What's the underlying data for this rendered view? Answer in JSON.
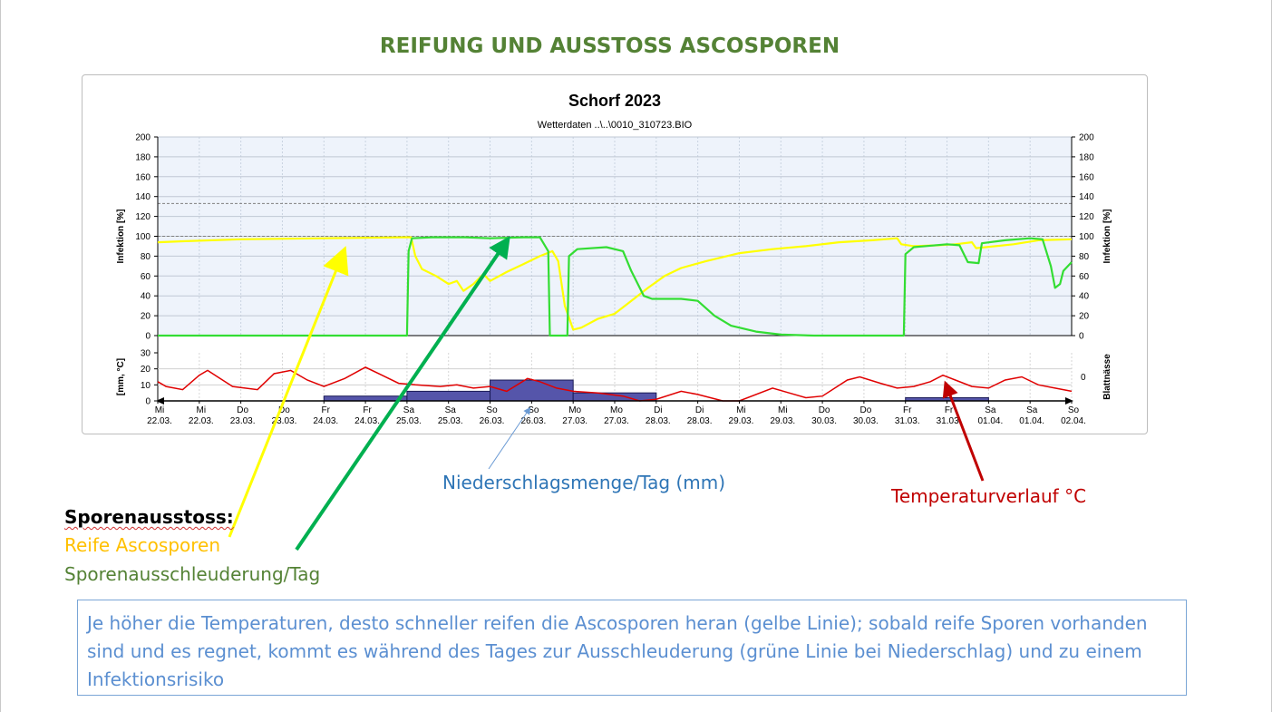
{
  "document": {
    "title": "REIFUNG UND AUSSTOSS ASCOSPOREN",
    "annotations": {
      "precipitation": "Niederschlagsmenge/Tag (mm)",
      "temperature": "Temperaturverlauf °C"
    },
    "legend": {
      "heading": "Sporenausstoss:",
      "yellow": "Reife Ascosporen",
      "green": "Sporenausschleuderung/Tag"
    },
    "note": "Je höher die Temperaturen, desto schneller reifen die Ascosporen heran (gelbe Linie); sobald reife Sporen vorhanden sind und es regnet, kommt es während des Tages zur Ausschleuderung (grüne Linie bei Niederschlag) und zu einem Infektionsrisiko",
    "colors": {
      "title": "#548235",
      "yellow": "#ffc000",
      "green": "#548235",
      "precip": "#2e75b6",
      "temp": "#c00000",
      "note": "#5b8fd1"
    }
  },
  "chart_data": {
    "type": "line",
    "title": "Schorf  2023",
    "subtitle": "Wetterdaten ..\\..\\0010_310723.BIO",
    "ylabel_left": "Infektion [%]",
    "ylabel_right": "Infektion [%]",
    "ylim": [
      0,
      200
    ],
    "yticks": [
      0,
      20,
      40,
      60,
      80,
      100,
      120,
      140,
      160,
      180,
      200
    ],
    "reference_line": 100,
    "xlim": [
      0,
      11
    ],
    "x_tick_weekdays": [
      "Mi",
      "Mi",
      "Do",
      "Do",
      "Fr",
      "Fr",
      "Sa",
      "Sa",
      "So",
      "So",
      "Mo",
      "Mo",
      "Di",
      "Di",
      "Mi",
      "Mi",
      "Do",
      "Do",
      "Fr",
      "Fr",
      "Sa",
      "Sa",
      "So"
    ],
    "x_tick_dates": [
      "22.03.",
      "22.03.",
      "23.03.",
      "23.03.",
      "24.03.",
      "24.03.",
      "25.03.",
      "25.03.",
      "26.03.",
      "26.03.",
      "27.03.",
      "27.03.",
      "28.03.",
      "28.03.",
      "29.03.",
      "29.03.",
      "30.03.",
      "30.03.",
      "31.03.",
      "31.03.",
      "01.04.",
      "01.04.",
      "02.04."
    ],
    "series": [
      {
        "name": "Reife Ascosporen",
        "color": "#ffff00",
        "points": [
          [
            0,
            94
          ],
          [
            0.3,
            95
          ],
          [
            1,
            97
          ],
          [
            2,
            98
          ],
          [
            3,
            99
          ],
          [
            3.05,
            99
          ],
          [
            3.1,
            80
          ],
          [
            3.18,
            67
          ],
          [
            3.35,
            60
          ],
          [
            3.5,
            52
          ],
          [
            3.6,
            55
          ],
          [
            3.68,
            45
          ],
          [
            3.8,
            52
          ],
          [
            3.92,
            62
          ],
          [
            4.0,
            55
          ],
          [
            4.2,
            64
          ],
          [
            4.4,
            72
          ],
          [
            4.6,
            80
          ],
          [
            4.75,
            85
          ],
          [
            4.82,
            75
          ],
          [
            4.9,
            30
          ],
          [
            5.0,
            6
          ],
          [
            5.1,
            8
          ],
          [
            5.3,
            17
          ],
          [
            5.5,
            22
          ],
          [
            5.7,
            35
          ],
          [
            5.9,
            48
          ],
          [
            6.1,
            60
          ],
          [
            6.3,
            68
          ],
          [
            6.6,
            75
          ],
          [
            7.0,
            83
          ],
          [
            7.4,
            87
          ],
          [
            7.8,
            90
          ],
          [
            8.2,
            94
          ],
          [
            8.6,
            96
          ],
          [
            8.9,
            98
          ],
          [
            8.95,
            92
          ],
          [
            9.1,
            90
          ],
          [
            9.4,
            91
          ],
          [
            9.6,
            92
          ],
          [
            9.8,
            94
          ],
          [
            9.85,
            88
          ],
          [
            10.3,
            92
          ],
          [
            10.6,
            96
          ],
          [
            11,
            97
          ]
        ]
      },
      {
        "name": "Sporenausschleuderung/Tag",
        "color": "#33dd33",
        "points": [
          [
            0,
            0
          ],
          [
            3.0,
            0
          ],
          [
            3.02,
            85
          ],
          [
            3.06,
            98
          ],
          [
            3.3,
            99
          ],
          [
            3.7,
            99
          ],
          [
            4.0,
            98
          ],
          [
            4.4,
            99
          ],
          [
            4.6,
            99
          ],
          [
            4.7,
            85
          ],
          [
            4.72,
            0
          ],
          [
            4.93,
            0
          ],
          [
            4.95,
            80
          ],
          [
            5.05,
            87
          ],
          [
            5.4,
            89
          ],
          [
            5.6,
            85
          ],
          [
            5.7,
            65
          ],
          [
            5.85,
            40
          ],
          [
            5.95,
            37
          ],
          [
            6.3,
            37
          ],
          [
            6.5,
            35
          ],
          [
            6.7,
            20
          ],
          [
            6.9,
            10
          ],
          [
            7.2,
            4
          ],
          [
            7.5,
            1
          ],
          [
            7.9,
            0
          ],
          [
            8.98,
            0
          ],
          [
            9.0,
            82
          ],
          [
            9.1,
            89
          ],
          [
            9.5,
            92
          ],
          [
            9.65,
            91
          ],
          [
            9.75,
            74
          ],
          [
            9.88,
            73
          ],
          [
            9.92,
            93
          ],
          [
            10.2,
            96
          ],
          [
            10.5,
            98
          ],
          [
            10.65,
            97
          ],
          [
            10.75,
            70
          ],
          [
            10.8,
            48
          ],
          [
            10.86,
            52
          ],
          [
            10.9,
            65
          ],
          [
            11,
            74
          ]
        ]
      }
    ],
    "lower_panel": {
      "ylabel": "[mm, °C]",
      "yticks": [
        0,
        10,
        20,
        30
      ],
      "ylim": [
        0,
        30
      ],
      "right_label": "Blattnässe",
      "right_ticks": [
        "0"
      ],
      "precipitation_bars": [
        {
          "x0": 2.0,
          "x1": 3.0,
          "value": 3
        },
        {
          "x0": 3.0,
          "x1": 4.0,
          "value": 6
        },
        {
          "x0": 4.0,
          "x1": 5.0,
          "value": 13
        },
        {
          "x0": 5.0,
          "x1": 6.0,
          "value": 5
        },
        {
          "x0": 9.0,
          "x1": 10.0,
          "value": 2
        }
      ],
      "temperature": [
        [
          0,
          12
        ],
        [
          0.1,
          9
        ],
        [
          0.3,
          7
        ],
        [
          0.5,
          16
        ],
        [
          0.6,
          19
        ],
        [
          0.75,
          14
        ],
        [
          0.9,
          9
        ],
        [
          1.2,
          7
        ],
        [
          1.4,
          17
        ],
        [
          1.6,
          19
        ],
        [
          1.8,
          13
        ],
        [
          2.0,
          9
        ],
        [
          2.25,
          14
        ],
        [
          2.5,
          21
        ],
        [
          2.7,
          16
        ],
        [
          2.9,
          11
        ],
        [
          3.1,
          10
        ],
        [
          3.4,
          9
        ],
        [
          3.6,
          10
        ],
        [
          3.8,
          8
        ],
        [
          4.0,
          9
        ],
        [
          4.2,
          6
        ],
        [
          4.45,
          14
        ],
        [
          4.6,
          12
        ],
        [
          4.8,
          8
        ],
        [
          5.0,
          6
        ],
        [
          5.3,
          5
        ],
        [
          5.6,
          3
        ],
        [
          5.8,
          0
        ],
        [
          6.0,
          1
        ],
        [
          6.3,
          6
        ],
        [
          6.5,
          4
        ],
        [
          6.8,
          0
        ],
        [
          7.0,
          0
        ],
        [
          7.4,
          8
        ],
        [
          7.6,
          5
        ],
        [
          7.8,
          2
        ],
        [
          8.0,
          3
        ],
        [
          8.3,
          13
        ],
        [
          8.45,
          15
        ],
        [
          8.7,
          11
        ],
        [
          8.9,
          8
        ],
        [
          9.1,
          9
        ],
        [
          9.3,
          12
        ],
        [
          9.45,
          16
        ],
        [
          9.6,
          13
        ],
        [
          9.8,
          9
        ],
        [
          10.0,
          8
        ],
        [
          10.2,
          13
        ],
        [
          10.4,
          15
        ],
        [
          10.6,
          10
        ],
        [
          10.8,
          8
        ],
        [
          11,
          6
        ]
      ]
    }
  }
}
